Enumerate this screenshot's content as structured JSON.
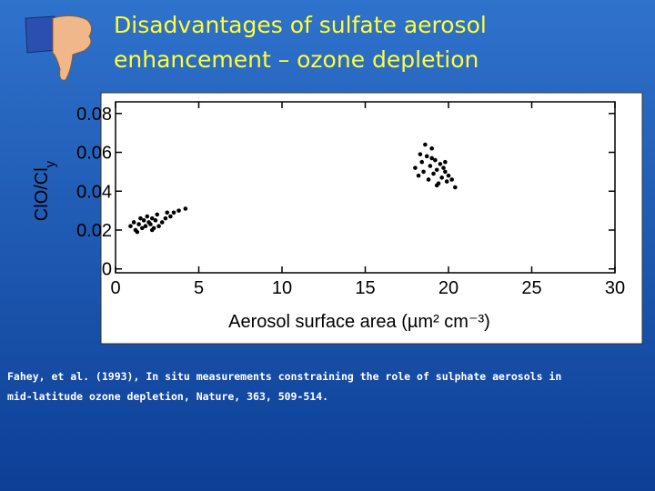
{
  "slide": {
    "title": [
      "Disadvantages of sulfate aerosol",
      "enhancement – ozone depletion"
    ],
    "citation": [
      "Fahey, et al. (1993), In situ measurements constraining the role of sulphate aerosols in",
      "mid-latitude ozone depletion, Nature, 363, 509-514."
    ]
  },
  "chart_data": {
    "type": "scatter",
    "x_label": "Aerosol surface area (µm² cm⁻³)",
    "y_label": "ClO/Cl",
    "y_label_sub": "y",
    "color": "#000000",
    "xlim": [
      0,
      30
    ],
    "xticks": [
      0,
      5,
      10,
      15,
      20,
      25,
      30
    ],
    "ylim": [
      -0.002,
      0.086
    ],
    "yticks": [
      0,
      0.02,
      0.04,
      0.06,
      0.08
    ],
    "x": [
      0.9,
      1.1,
      1.2,
      1.4,
      1.5,
      1.6,
      1.7,
      1.8,
      1.9,
      2.0,
      2.1,
      2.2,
      2.3,
      2.4,
      2.5,
      2.6,
      2.8,
      3.0,
      3.1,
      3.3,
      3.5,
      3.8,
      4.2,
      1.3,
      2.2,
      18.0,
      18.2,
      18.4,
      18.5,
      18.7,
      18.8,
      18.9,
      19.0,
      19.1,
      19.2,
      19.3,
      19.4,
      19.5,
      19.6,
      19.7,
      19.8,
      19.9,
      20.0,
      20.2,
      20.4,
      18.6,
      19.0,
      19.3,
      18.3,
      19.8
    ],
    "values": [
      0.022,
      0.024,
      0.02,
      0.023,
      0.026,
      0.021,
      0.025,
      0.022,
      0.027,
      0.024,
      0.023,
      0.026,
      0.021,
      0.025,
      0.028,
      0.022,
      0.024,
      0.026,
      0.029,
      0.027,
      0.029,
      0.03,
      0.031,
      0.019,
      0.02,
      0.052,
      0.048,
      0.055,
      0.05,
      0.058,
      0.046,
      0.053,
      0.062,
      0.049,
      0.056,
      0.051,
      0.044,
      0.054,
      0.047,
      0.052,
      0.05,
      0.045,
      0.048,
      0.046,
      0.042,
      0.064,
      0.057,
      0.043,
      0.059,
      0.055
    ]
  }
}
